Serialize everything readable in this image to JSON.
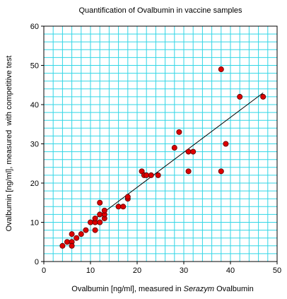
{
  "chart_data": {
    "type": "scatter",
    "title": "Quantification of Ovalbumin in vaccine samples",
    "xlabel": [
      "Ovalbumin [ng/ml], measured in ",
      "Serazym",
      " Ovalbumin"
    ],
    "ylabel": "Ovalbumin [ng/ml], measured  with competitive test",
    "x": [
      4,
      5,
      6,
      6,
      6,
      7,
      8,
      9,
      10,
      11,
      11,
      11,
      12,
      12,
      12,
      13,
      13,
      13,
      16,
      17,
      18,
      18,
      21,
      21.5,
      22,
      23,
      24.5,
      28,
      29,
      31,
      31,
      32,
      38,
      38,
      39,
      42,
      47
    ],
    "values": [
      4,
      5,
      5,
      4,
      7,
      6,
      7,
      8,
      10,
      8,
      10,
      11,
      10,
      12,
      15,
      11,
      12,
      13,
      14,
      14,
      16,
      16.5,
      23,
      22,
      22,
      22,
      22,
      29,
      33,
      28,
      23,
      28,
      49,
      23,
      30,
      42,
      42
    ],
    "color": "#dd0000",
    "trendline": {
      "x": [
        10,
        47
      ],
      "values": [
        10,
        43
      ]
    },
    "xlim": [
      0,
      50
    ],
    "xticks": [
      0,
      10,
      20,
      30,
      40,
      50
    ],
    "ylim": [
      0,
      60
    ],
    "yticks": [
      0,
      10,
      20,
      30,
      40,
      50,
      60
    ],
    "grid": true,
    "grid_step": 2,
    "grid_color": "#33d6e6"
  }
}
